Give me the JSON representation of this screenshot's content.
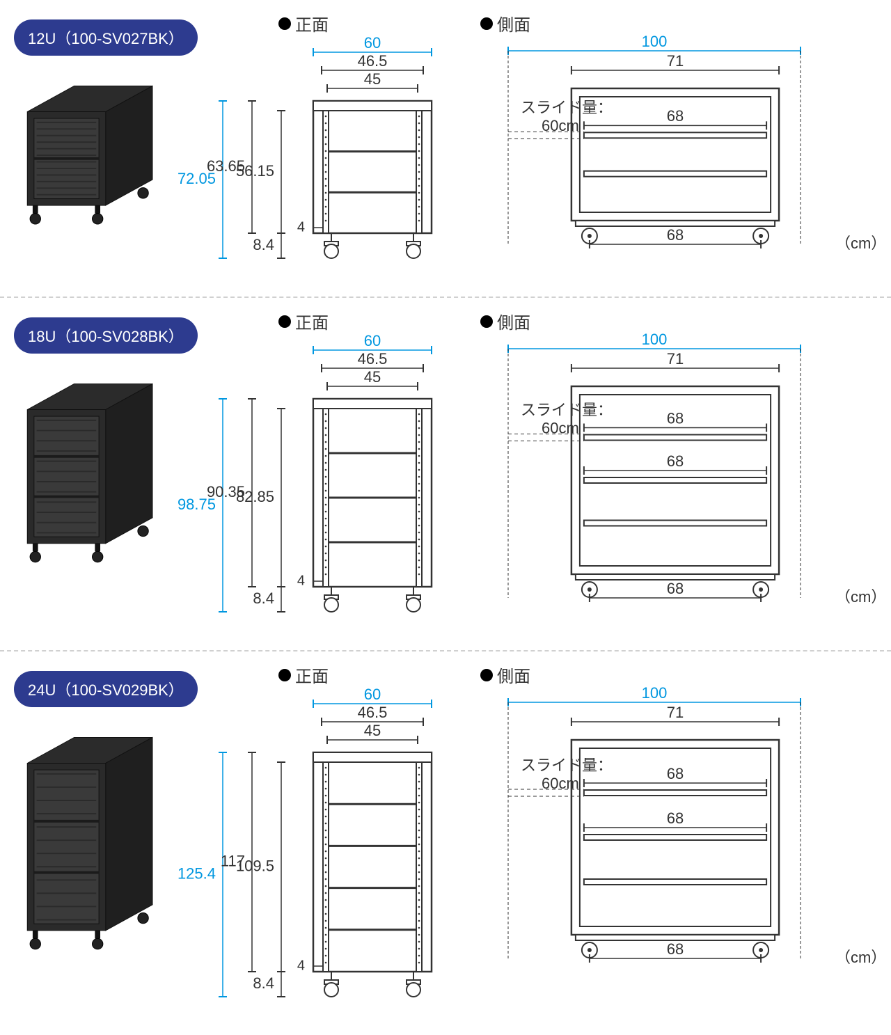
{
  "colors": {
    "badge_bg": "#2d3b8f",
    "badge_text": "#ffffff",
    "accent": "#0097e0",
    "line": "#333333",
    "text": "#333333",
    "panel_divider": "#d0d0d0",
    "rack_body": "#262626",
    "rack_mesh": "#3a3a3a"
  },
  "typography": {
    "badge_fontsize": 22,
    "header_fontsize": 24,
    "dim_fontsize": 22
  },
  "labels": {
    "front_view": "正面",
    "side_view": "側面",
    "slide_amount_prefix": "スライド量：",
    "unit_suffix": "（cm）"
  },
  "panels": [
    {
      "badge": "12U（100-SV027BK）",
      "thumb_shelves": 1,
      "front": {
        "top_outer_width": 60,
        "top_mid_width": 46.5,
        "top_inner_width": 45,
        "total_height_blue": 72.05,
        "body_height": 63.65,
        "inner_height": 56.15,
        "foot_height": 8.4,
        "inset": 4,
        "draw_body_h": 190,
        "shelf_rows": 3
      },
      "side": {
        "top_width_blue": 100,
        "top_width_black": 71,
        "inner_shelf": 68,
        "foot_span": 68,
        "slide_amount": "60cm",
        "draw_body_h": 190,
        "shelf_rows": 3,
        "show_second_68_label": false
      }
    },
    {
      "badge": "18U（100-SV028BK）",
      "thumb_shelves": 2,
      "front": {
        "top_outer_width": 60,
        "top_mid_width": 46.5,
        "top_inner_width": 45,
        "total_height_blue": 98.75,
        "body_height": 90.35,
        "inner_height": 82.85,
        "foot_height": 8.4,
        "inset": 4,
        "draw_body_h": 270,
        "shelf_rows": 4
      },
      "side": {
        "top_width_blue": 100,
        "top_width_black": 71,
        "inner_shelf": 68,
        "foot_span": 68,
        "slide_amount": "60cm",
        "draw_body_h": 270,
        "shelf_rows": 4,
        "show_second_68_label": true
      }
    },
    {
      "badge": "24U（100-SV029BK）",
      "thumb_shelves": 2,
      "front": {
        "top_outer_width": 60,
        "top_mid_width": 46.5,
        "top_inner_width": 45,
        "total_height_blue": 125.4,
        "body_height": 117,
        "inner_height": 109.5,
        "foot_height": 8.4,
        "inset": 4,
        "draw_body_h": 315,
        "shelf_rows": 5
      },
      "side": {
        "top_width_blue": 100,
        "top_width_black": 71,
        "inner_shelf": 68,
        "foot_span": 68,
        "slide_amount": "60cm",
        "draw_body_h": 280,
        "shelf_rows": 4,
        "show_second_68_label": true
      }
    }
  ]
}
